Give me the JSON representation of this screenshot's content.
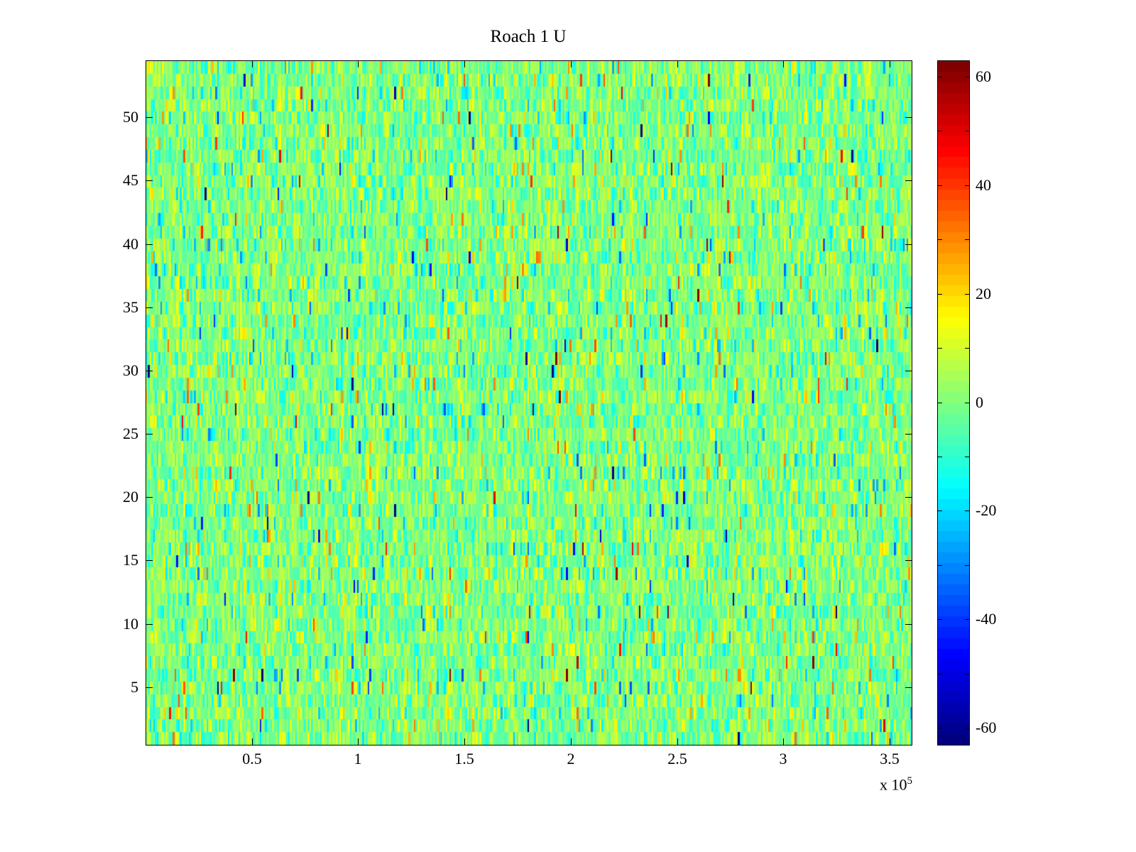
{
  "figure": {
    "background": "#ffffff"
  },
  "chart_data": {
    "type": "heatmap",
    "title": "Roach 1 U",
    "colormap": "jet",
    "x_range": [
      0,
      360000
    ],
    "y_range": [
      0.5,
      54.5
    ],
    "clim": [
      -63,
      63
    ],
    "x_tick_values": [
      50000,
      100000,
      150000,
      200000,
      250000,
      300000,
      350000
    ],
    "x_tick_labels": [
      "0.5",
      "1",
      "1.5",
      "2",
      "2.5",
      "3",
      "3.5"
    ],
    "x_exponent_label": "x 10",
    "x_exponent": "5",
    "y_tick_values": [
      5,
      10,
      15,
      20,
      25,
      30,
      35,
      40,
      45,
      50
    ],
    "y_tick_labels": [
      "5",
      "10",
      "15",
      "20",
      "25",
      "30",
      "35",
      "40",
      "45",
      "50"
    ],
    "colorbar": {
      "tick_values": [
        60,
        40,
        20,
        0,
        -20,
        -40,
        -60
      ],
      "tick_labels": [
        "60",
        "40",
        "20",
        "0",
        "-20",
        "-40",
        "-60"
      ],
      "minor_tick_step": 10,
      "bands": 64
    },
    "grid": {
      "rows": 54,
      "cols": 432
    },
    "noise": {
      "seed": 20240613,
      "mixture": [
        {
          "p": 0.9,
          "std": 8
        },
        {
          "p": 0.09,
          "std": 18
        },
        {
          "p": 0.01,
          "std": 38
        }
      ]
    },
    "content_summary": "Dense random-noise heatmap; values centered near 0 (green), mostly within +/-20, with sparse outliers reaching about +/-60 (red/blue speckles)."
  }
}
